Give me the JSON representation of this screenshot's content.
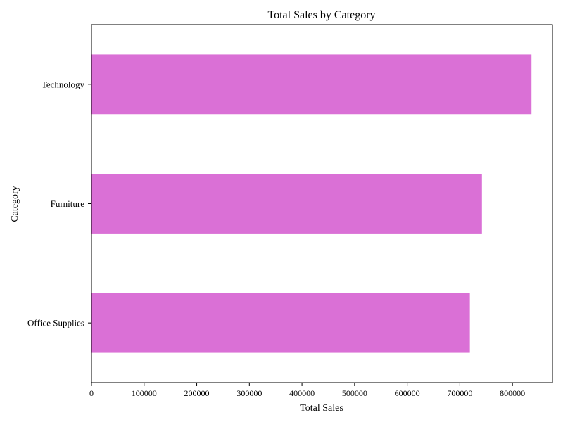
{
  "chart_data": {
    "type": "bar",
    "orientation": "horizontal",
    "title": "Total Sales by Category",
    "xlabel": "Total Sales",
    "ylabel": "Category",
    "categories": [
      "Office Supplies",
      "Furniture",
      "Technology"
    ],
    "values": [
      719047,
      741999,
      836154
    ],
    "xlim": [
      0,
      876000
    ],
    "xticks": [
      "0",
      "100000",
      "200000",
      "300000",
      "400000",
      "500000",
      "600000",
      "700000",
      "800000"
    ],
    "xtick_values": [
      0,
      100000,
      200000,
      300000,
      400000,
      500000,
      600000,
      700000,
      800000
    ],
    "grid": false,
    "legend": "none",
    "bar_color": "#da70d6"
  }
}
